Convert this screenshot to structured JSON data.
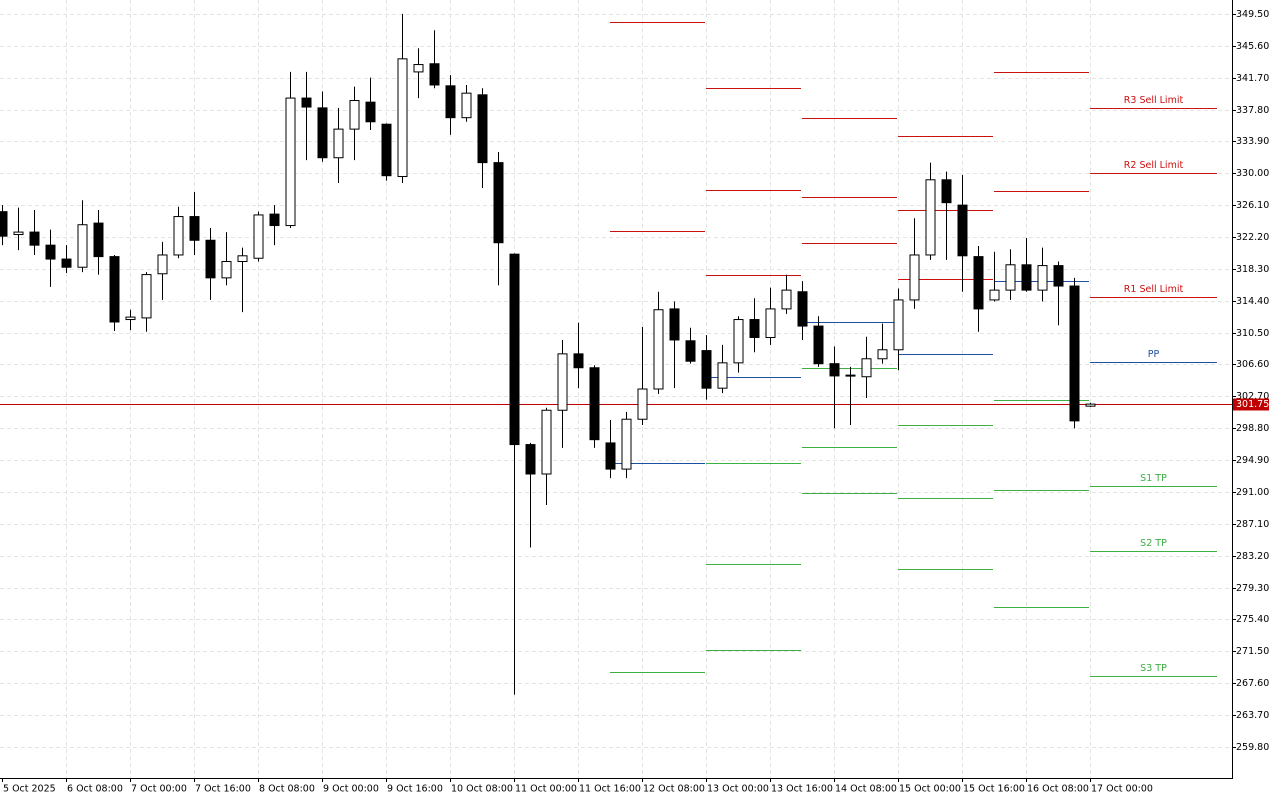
{
  "chart_data": {
    "type": "candlestick",
    "categories": [
      "5 Oct 2025",
      null,
      null,
      null,
      "6 Oct 08:00",
      null,
      null,
      null,
      "7 Oct 00:00",
      null,
      null,
      null,
      "7 Oct 16:00",
      null,
      null,
      null,
      "8 Oct 08:00",
      null,
      null,
      null,
      "9 Oct 00:00",
      null,
      null,
      null,
      "9 Oct 16:00",
      null,
      null,
      null,
      "10 Oct 08:00",
      null,
      null,
      null,
      "11 Oct 00:00",
      null,
      null,
      null,
      "11 Oct 16:00",
      null,
      null,
      null,
      "12 Oct 08:00",
      null,
      null,
      null,
      "13 Oct 00:00",
      null,
      null,
      null,
      "13 Oct 16:00",
      null,
      null,
      null,
      "14 Oct 08:00",
      null,
      null,
      null,
      "15 Oct 00:00",
      null,
      null,
      null,
      "15 Oct 16:00",
      null,
      null,
      null,
      "16 Oct 08:00",
      null,
      null,
      null,
      "17 Oct 00:00"
    ],
    "open": [
      325.3,
      322.5,
      322.8,
      321.2,
      319.5,
      318.5,
      323.9,
      319.8,
      312.1,
      312.3,
      317.7,
      320.0,
      324.7,
      321.8,
      317.2,
      319.2,
      319.6,
      325.0,
      323.6,
      339.2,
      338.0,
      331.9,
      335.4,
      338.7,
      336.0,
      329.6,
      342.4,
      343.4,
      340.7,
      336.8,
      339.6,
      331.3,
      320.1,
      296.8,
      293.2,
      301.0,
      307.9,
      306.2,
      297.0,
      293.8,
      299.9,
      303.6,
      313.4,
      309.5,
      308.3,
      303.7,
      306.8,
      312.1,
      309.9,
      313.4,
      315.5,
      311.3,
      306.7,
      305.2,
      305.1,
      307.3,
      308.4,
      314.5,
      320.0,
      329.2,
      326.1,
      319.8,
      314.5,
      315.7,
      318.8,
      315.7,
      318.7,
      316.2,
      301.5
    ],
    "high": [
      326.1,
      325.8,
      325.5,
      323.1,
      321.2,
      326.7,
      325.5,
      320.0,
      313.3,
      317.9,
      321.6,
      325.9,
      327.7,
      323.3,
      322.8,
      320.9,
      325.3,
      326.1,
      342.4,
      342.4,
      340.0,
      338.0,
      340.6,
      341.7,
      336.1,
      349.5,
      345.3,
      347.5,
      342.0,
      340.8,
      340.4,
      332.6,
      320.2,
      297.0,
      301.3,
      309.6,
      311.7,
      306.5,
      299.8,
      300.8,
      311.2,
      315.5,
      314.3,
      311.1,
      310.2,
      309.0,
      312.5,
      314.7,
      316.0,
      317.6,
      316.8,
      312.5,
      308.8,
      306.3,
      310.0,
      311.6,
      315.9,
      324.5,
      331.3,
      330.2,
      329.8,
      321.1,
      320.4,
      320.7,
      322.1,
      320.9,
      319.2,
      317.2,
      301.9
    ],
    "low": [
      321.2,
      320.6,
      320.0,
      316.1,
      317.8,
      317.9,
      317.6,
      310.7,
      310.8,
      310.6,
      314.5,
      319.6,
      320.0,
      314.5,
      316.3,
      313.0,
      319.2,
      321.2,
      323.3,
      331.6,
      331.4,
      328.8,
      331.6,
      335.3,
      329.1,
      328.8,
      339.2,
      340.4,
      334.7,
      336.3,
      328.2,
      316.3,
      266.2,
      284.2,
      289.4,
      296.4,
      303.7,
      296.4,
      292.7,
      292.7,
      299.2,
      303.0,
      303.7,
      306.7,
      302.3,
      303.1,
      305.6,
      308.1,
      309.0,
      312.8,
      309.6,
      306.3,
      298.8,
      299.2,
      302.5,
      306.7,
      305.9,
      313.4,
      319.4,
      319.4,
      315.5,
      310.6,
      314.3,
      314.5,
      315.5,
      314.3,
      311.4,
      298.8,
      301.4
    ],
    "close": [
      322.3,
      322.8,
      321.2,
      319.5,
      318.5,
      323.7,
      319.8,
      311.8,
      312.4,
      317.6,
      320.0,
      324.7,
      321.8,
      317.2,
      319.2,
      319.9,
      324.9,
      323.6,
      339.2,
      338.1,
      331.9,
      335.4,
      338.9,
      336.3,
      329.7,
      344.0,
      343.3,
      340.8,
      336.8,
      339.8,
      331.3,
      321.5,
      296.8,
      293.2,
      301.0,
      307.9,
      306.2,
      297.4,
      293.8,
      299.9,
      303.6,
      313.3,
      309.6,
      307.0,
      303.7,
      306.8,
      312.1,
      309.9,
      313.4,
      315.7,
      311.3,
      306.7,
      305.2,
      305.3,
      307.3,
      308.4,
      314.5,
      320.0,
      329.2,
      326.4,
      319.9,
      313.4,
      315.7,
      318.8,
      315.7,
      318.7,
      316.2,
      299.7,
      301.75
    ],
    "up_color": "#ffffff",
    "down_color": "#000000",
    "ylim": [
      256.0,
      351.2
    ],
    "yticks": [
      {
        "value": 349.5,
        "label": "349.50"
      },
      {
        "value": 345.6,
        "label": "345.60"
      },
      {
        "value": 341.7,
        "label": "341.70"
      },
      {
        "value": 337.8,
        "label": "337.80"
      },
      {
        "value": 333.9,
        "label": "333.90"
      },
      {
        "value": 330.0,
        "label": "330.00"
      },
      {
        "value": 326.1,
        "label": "326.10"
      },
      {
        "value": 322.2,
        "label": "322.20"
      },
      {
        "value": 318.3,
        "label": "318.30"
      },
      {
        "value": 314.4,
        "label": "314.40"
      },
      {
        "value": 310.5,
        "label": "310.50"
      },
      {
        "value": 306.6,
        "label": "306.60"
      },
      {
        "value": 302.7,
        "label": "302.70"
      },
      {
        "value": 298.8,
        "label": "298.80"
      },
      {
        "value": 294.9,
        "label": "294.90"
      },
      {
        "value": 291.0,
        "label": "291.00"
      },
      {
        "value": 287.1,
        "label": "287.10"
      },
      {
        "value": 283.2,
        "label": "283.20"
      },
      {
        "value": 279.3,
        "label": "279.30"
      },
      {
        "value": 275.4,
        "label": "275.40"
      },
      {
        "value": 271.5,
        "label": "271.50"
      },
      {
        "value": 267.6,
        "label": "267.60"
      },
      {
        "value": 263.7,
        "label": "263.70"
      },
      {
        "value": 259.8,
        "label": "259.80"
      }
    ],
    "grid": true,
    "current_price": 301.75,
    "current_price_color": "#c00000",
    "resistance_color": "#cc1010",
    "pivot_color": "#1f4f9f",
    "support_color": "#3cb043",
    "pivot_periods": [
      {
        "start": 38,
        "resistance": [
          322.9,
          348.5
        ],
        "pivot": 294.6,
        "support": [
          269.0
        ]
      },
      {
        "start": 44,
        "resistance": [
          317.6,
          328.0,
          340.4
        ],
        "pivot": 305.1,
        "support": [
          294.6,
          282.2,
          271.7
        ]
      },
      {
        "start": 50,
        "resistance": [
          321.5,
          327.1,
          336.8
        ],
        "pivot": 311.8,
        "support": [
          306.2,
          296.5,
          290.9
        ]
      },
      {
        "start": 56,
        "resistance": [
          317.0,
          325.5,
          334.6
        ],
        "pivot": 307.9,
        "support": [
          299.2,
          290.3,
          281.6
        ]
      },
      {
        "start": 62,
        "resistance": [
          327.8,
          342.4
        ],
        "pivot": 316.8,
        "support": [
          302.3,
          291.3,
          276.9
        ]
      },
      {
        "start": 68,
        "resistance": [
          314.9,
          330.0,
          338.0
        ],
        "pivot": 306.9,
        "support": [
          291.7,
          283.8,
          268.5
        ],
        "resistance_labels": [
          "R1 Sell Limit",
          "R2 Sell Limit",
          "R3 Sell Limit"
        ],
        "pivot_label": "PP",
        "support_labels": [
          "S1 TP",
          "S2 TP",
          "S3 TP"
        ]
      }
    ]
  }
}
